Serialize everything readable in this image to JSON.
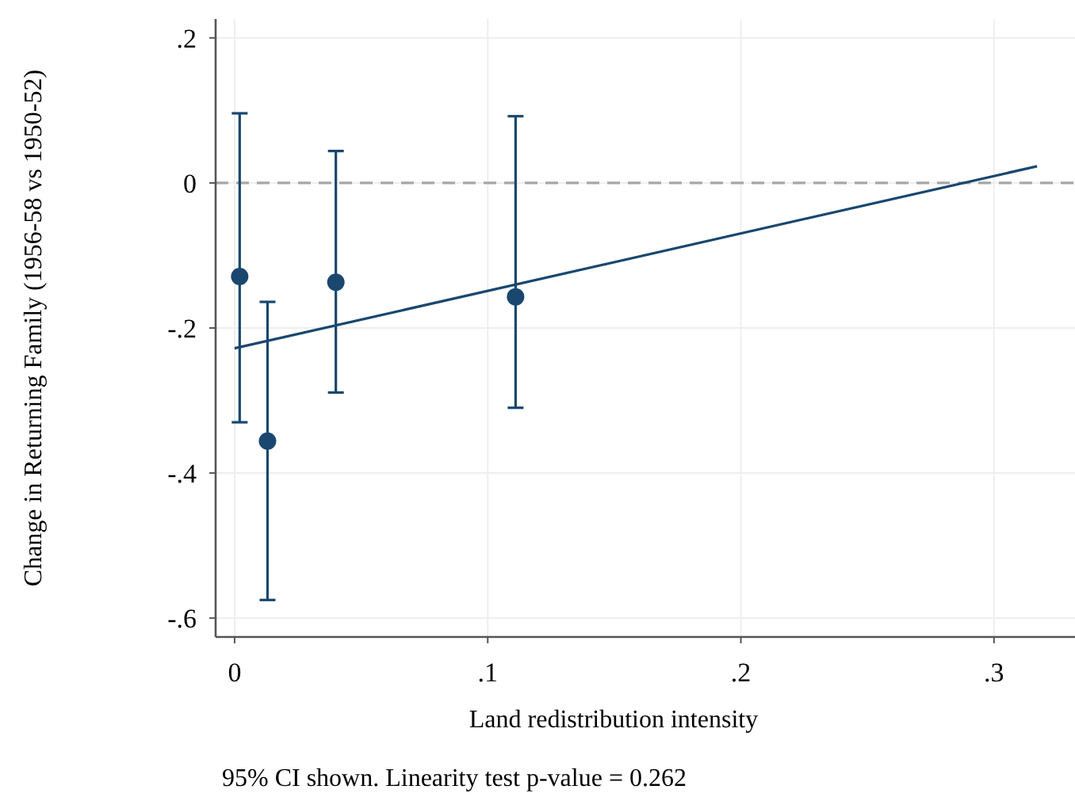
{
  "chart_data": {
    "type": "scatter",
    "xlabel": "Land redistribution intensity",
    "ylabel": "Change in Returning Family (1956-58 vs 1950-52)",
    "annotations": [
      "95% CI shown. Linearity test p-value = 0.262"
    ],
    "xlim": [
      -0.0075,
      0.332
    ],
    "ylim": [
      -0.626,
      0.226
    ],
    "xticks": [
      {
        "value": 0,
        "label": "0"
      },
      {
        "value": 0.1,
        "label": ".1"
      },
      {
        "value": 0.2,
        "label": ".2"
      },
      {
        "value": 0.3,
        "label": ".3"
      }
    ],
    "yticks": [
      {
        "value": -0.6,
        "label": "-.6"
      },
      {
        "value": -0.4,
        "label": "-.4"
      },
      {
        "value": -0.2,
        "label": "-.2"
      },
      {
        "value": 0,
        "label": "0"
      },
      {
        "value": 0.2,
        "label": ".2"
      }
    ],
    "grid": true,
    "marker": "circle",
    "ref_lines": [
      {
        "axis": "y",
        "value": 0,
        "color": "#a6a6a6",
        "line_style": "dashed"
      }
    ],
    "series": [
      {
        "color": "#1a476f",
        "x": [
          0.002,
          0.013,
          0.04,
          0.111
        ],
        "values": [
          -0.129,
          -0.356,
          -0.137,
          -0.157
        ],
        "errors": [
          [
            -0.33,
            0.096
          ],
          [
            -0.575,
            -0.164
          ],
          [
            -0.289,
            0.044
          ],
          [
            -0.31,
            0.092
          ]
        ]
      },
      {
        "type": "line",
        "color": "#1a476f",
        "x": [
          0,
          0.317
        ],
        "values": [
          -0.228,
          0.023
        ],
        "line_style": "solid",
        "marker": "none"
      }
    ]
  }
}
